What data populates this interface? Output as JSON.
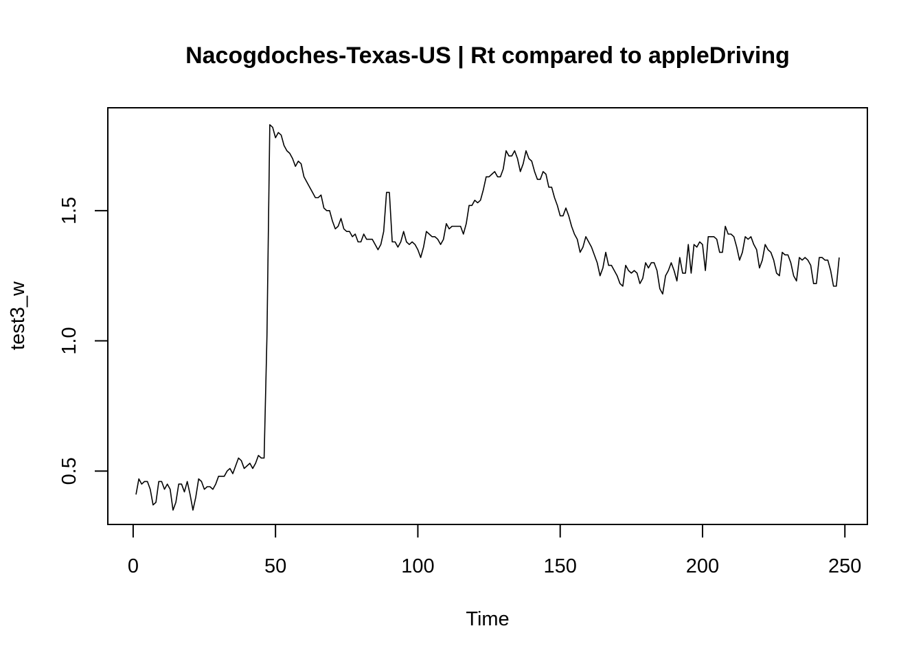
{
  "chart_data": {
    "type": "line",
    "title": "Nacogdoches-Texas-US | Rt compared to appleDriving",
    "xlabel": "Time",
    "ylabel": "test3_w",
    "xlim": [
      -8.9,
      257.9
    ],
    "ylim": [
      0.295,
      1.895
    ],
    "x_ticks": [
      0,
      50,
      100,
      150,
      200,
      250
    ],
    "x_tick_labels": [
      "0",
      "50",
      "100",
      "150",
      "200",
      "250"
    ],
    "y_ticks": [
      0.5,
      1.0,
      1.5
    ],
    "y_tick_labels": [
      "0.5",
      "1.0",
      "1.5"
    ],
    "grid": false,
    "box": true,
    "line_color": "#000000",
    "x_start": 1,
    "series": [
      {
        "values": [
          0.41,
          0.47,
          0.45,
          0.46,
          0.46,
          0.43,
          0.37,
          0.38,
          0.46,
          0.46,
          0.43,
          0.45,
          0.43,
          0.35,
          0.38,
          0.45,
          0.45,
          0.42,
          0.46,
          0.41,
          0.35,
          0.4,
          0.47,
          0.46,
          0.43,
          0.44,
          0.44,
          0.43,
          0.45,
          0.48,
          0.48,
          0.48,
          0.5,
          0.51,
          0.49,
          0.52,
          0.55,
          0.54,
          0.51,
          0.52,
          0.53,
          0.51,
          0.53,
          0.56,
          0.55,
          0.55,
          1.02,
          1.83,
          1.82,
          1.78,
          1.8,
          1.79,
          1.75,
          1.73,
          1.72,
          1.7,
          1.67,
          1.69,
          1.68,
          1.63,
          1.61,
          1.59,
          1.57,
          1.55,
          1.55,
          1.56,
          1.51,
          1.5,
          1.5,
          1.46,
          1.43,
          1.44,
          1.47,
          1.43,
          1.42,
          1.42,
          1.4,
          1.41,
          1.38,
          1.38,
          1.41,
          1.39,
          1.39,
          1.39,
          1.37,
          1.35,
          1.37,
          1.42,
          1.57,
          1.57,
          1.38,
          1.38,
          1.36,
          1.38,
          1.42,
          1.38,
          1.37,
          1.38,
          1.37,
          1.35,
          1.32,
          1.36,
          1.42,
          1.41,
          1.4,
          1.4,
          1.39,
          1.37,
          1.39,
          1.45,
          1.43,
          1.44,
          1.44,
          1.44,
          1.44,
          1.41,
          1.45,
          1.52,
          1.52,
          1.54,
          1.53,
          1.54,
          1.58,
          1.63,
          1.63,
          1.64,
          1.65,
          1.63,
          1.63,
          1.66,
          1.73,
          1.71,
          1.71,
          1.73,
          1.7,
          1.65,
          1.68,
          1.73,
          1.7,
          1.69,
          1.65,
          1.62,
          1.62,
          1.65,
          1.64,
          1.59,
          1.59,
          1.55,
          1.52,
          1.48,
          1.48,
          1.51,
          1.48,
          1.44,
          1.41,
          1.39,
          1.34,
          1.36,
          1.4,
          1.38,
          1.36,
          1.33,
          1.3,
          1.25,
          1.28,
          1.34,
          1.29,
          1.29,
          1.27,
          1.25,
          1.22,
          1.21,
          1.29,
          1.27,
          1.26,
          1.27,
          1.26,
          1.22,
          1.24,
          1.3,
          1.28,
          1.3,
          1.3,
          1.27,
          1.2,
          1.18,
          1.25,
          1.27,
          1.3,
          1.27,
          1.23,
          1.32,
          1.26,
          1.26,
          1.37,
          1.26,
          1.37,
          1.36,
          1.38,
          1.37,
          1.27,
          1.4,
          1.4,
          1.4,
          1.39,
          1.34,
          1.34,
          1.44,
          1.41,
          1.41,
          1.4,
          1.36,
          1.31,
          1.34,
          1.4,
          1.39,
          1.4,
          1.37,
          1.35,
          1.28,
          1.31,
          1.37,
          1.35,
          1.34,
          1.31,
          1.26,
          1.25,
          1.34,
          1.33,
          1.33,
          1.3,
          1.25,
          1.23,
          1.32,
          1.31,
          1.32,
          1.31,
          1.29,
          1.22,
          1.22,
          1.32,
          1.32,
          1.31,
          1.31,
          1.27,
          1.21,
          1.21,
          1.32
        ]
      }
    ]
  }
}
